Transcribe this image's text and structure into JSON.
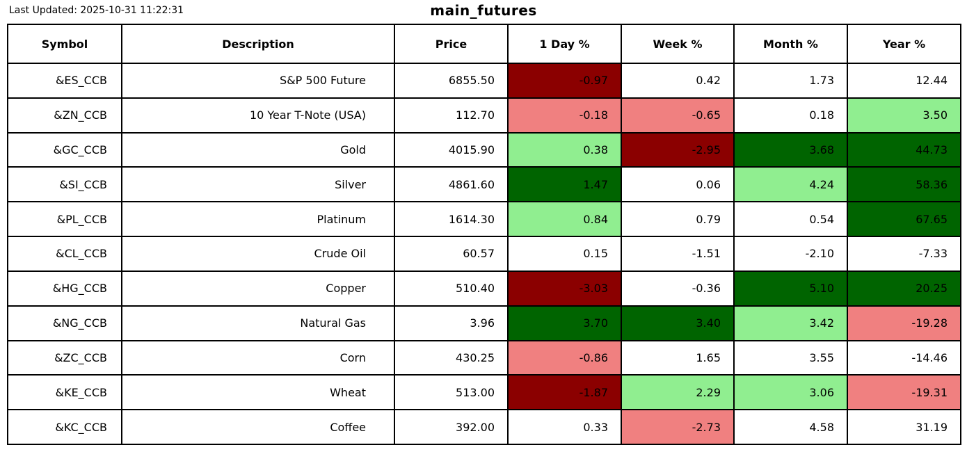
{
  "page": {
    "last_updated": "Last Updated: 2025-10-31 11:22:31",
    "title": "main_futures"
  },
  "colors": {
    "strong_up": "#006400",
    "up": "#90EE90",
    "down": "#F08080",
    "strong_down": "#8B0000",
    "neutral": "#FFFFFF",
    "border": "#000000",
    "text": "#000000"
  },
  "table": {
    "columns": [
      {
        "key": "symbol",
        "label": "Symbol"
      },
      {
        "key": "description",
        "label": "Description"
      },
      {
        "key": "price",
        "label": "Price"
      },
      {
        "key": "day",
        "label": "1 Day %"
      },
      {
        "key": "week",
        "label": "Week %"
      },
      {
        "key": "month",
        "label": "Month %"
      },
      {
        "key": "year",
        "label": "Year %"
      }
    ],
    "rows": [
      {
        "symbol": {
          "text": "&ES_CCB"
        },
        "description": {
          "text": "S&P 500 Future"
        },
        "price": {
          "text": "6855.50"
        },
        "day": {
          "text": "-0.97",
          "bg": "strong_down"
        },
        "week": {
          "text": "0.42",
          "bg": "neutral"
        },
        "month": {
          "text": "1.73",
          "bg": "neutral"
        },
        "year": {
          "text": "12.44",
          "bg": "neutral"
        }
      },
      {
        "symbol": {
          "text": "&ZN_CCB"
        },
        "description": {
          "text": "10 Year T-Note (USA)"
        },
        "price": {
          "text": "112.70"
        },
        "day": {
          "text": "-0.18",
          "bg": "down"
        },
        "week": {
          "text": "-0.65",
          "bg": "down"
        },
        "month": {
          "text": "0.18",
          "bg": "neutral"
        },
        "year": {
          "text": "3.50",
          "bg": "up"
        }
      },
      {
        "symbol": {
          "text": "&GC_CCB"
        },
        "description": {
          "text": "Gold"
        },
        "price": {
          "text": "4015.90"
        },
        "day": {
          "text": "0.38",
          "bg": "up"
        },
        "week": {
          "text": "-2.95",
          "bg": "strong_down"
        },
        "month": {
          "text": "3.68",
          "bg": "strong_up"
        },
        "year": {
          "text": "44.73",
          "bg": "strong_up"
        }
      },
      {
        "symbol": {
          "text": "&SI_CCB"
        },
        "description": {
          "text": "Silver"
        },
        "price": {
          "text": "4861.60"
        },
        "day": {
          "text": "1.47",
          "bg": "strong_up"
        },
        "week": {
          "text": "0.06",
          "bg": "neutral"
        },
        "month": {
          "text": "4.24",
          "bg": "up"
        },
        "year": {
          "text": "58.36",
          "bg": "strong_up"
        }
      },
      {
        "symbol": {
          "text": "&PL_CCB"
        },
        "description": {
          "text": "Platinum"
        },
        "price": {
          "text": "1614.30"
        },
        "day": {
          "text": "0.84",
          "bg": "up"
        },
        "week": {
          "text": "0.79",
          "bg": "neutral"
        },
        "month": {
          "text": "0.54",
          "bg": "neutral"
        },
        "year": {
          "text": "67.65",
          "bg": "strong_up"
        }
      },
      {
        "symbol": {
          "text": "&CL_CCB"
        },
        "description": {
          "text": "Crude Oil"
        },
        "price": {
          "text": "60.57"
        },
        "day": {
          "text": "0.15",
          "bg": "neutral"
        },
        "week": {
          "text": "-1.51",
          "bg": "neutral"
        },
        "month": {
          "text": "-2.10",
          "bg": "neutral"
        },
        "year": {
          "text": "-7.33",
          "bg": "neutral"
        }
      },
      {
        "symbol": {
          "text": "&HG_CCB"
        },
        "description": {
          "text": "Copper"
        },
        "price": {
          "text": "510.40"
        },
        "day": {
          "text": "-3.03",
          "bg": "strong_down"
        },
        "week": {
          "text": "-0.36",
          "bg": "neutral"
        },
        "month": {
          "text": "5.10",
          "bg": "strong_up"
        },
        "year": {
          "text": "20.25",
          "bg": "strong_up"
        }
      },
      {
        "symbol": {
          "text": "&NG_CCB"
        },
        "description": {
          "text": "Natural Gas"
        },
        "price": {
          "text": "3.96"
        },
        "day": {
          "text": "3.70",
          "bg": "strong_up"
        },
        "week": {
          "text": "3.40",
          "bg": "strong_up"
        },
        "month": {
          "text": "3.42",
          "bg": "up"
        },
        "year": {
          "text": "-19.28",
          "bg": "down"
        }
      },
      {
        "symbol": {
          "text": "&ZC_CCB"
        },
        "description": {
          "text": "Corn"
        },
        "price": {
          "text": "430.25"
        },
        "day": {
          "text": "-0.86",
          "bg": "down"
        },
        "week": {
          "text": "1.65",
          "bg": "neutral"
        },
        "month": {
          "text": "3.55",
          "bg": "neutral"
        },
        "year": {
          "text": "-14.46",
          "bg": "neutral"
        }
      },
      {
        "symbol": {
          "text": "&KE_CCB"
        },
        "description": {
          "text": "Wheat"
        },
        "price": {
          "text": "513.00"
        },
        "day": {
          "text": "-1.87",
          "bg": "strong_down"
        },
        "week": {
          "text": "2.29",
          "bg": "up"
        },
        "month": {
          "text": "3.06",
          "bg": "up"
        },
        "year": {
          "text": "-19.31",
          "bg": "down"
        }
      },
      {
        "symbol": {
          "text": "&KC_CCB"
        },
        "description": {
          "text": "Coffee"
        },
        "price": {
          "text": "392.00"
        },
        "day": {
          "text": "0.33",
          "bg": "neutral"
        },
        "week": {
          "text": "-2.73",
          "bg": "down"
        },
        "month": {
          "text": "4.58",
          "bg": "neutral"
        },
        "year": {
          "text": "31.19",
          "bg": "neutral"
        }
      }
    ]
  },
  "chart_data": {
    "type": "table",
    "title": "main_futures",
    "last_updated": "2025-10-31 11:22:31",
    "columns": [
      "Symbol",
      "Description",
      "Price",
      "1 Day %",
      "Week %",
      "Month %",
      "Year %"
    ],
    "rows": [
      [
        "&ES_CCB",
        "S&P 500 Future",
        6855.5,
        -0.97,
        0.42,
        1.73,
        12.44
      ],
      [
        "&ZN_CCB",
        "10 Year T-Note (USA)",
        112.7,
        -0.18,
        -0.65,
        0.18,
        3.5
      ],
      [
        "&GC_CCB",
        "Gold",
        4015.9,
        0.38,
        -2.95,
        3.68,
        44.73
      ],
      [
        "&SI_CCB",
        "Silver",
        4861.6,
        1.47,
        0.06,
        4.24,
        58.36
      ],
      [
        "&PL_CCB",
        "Platinum",
        1614.3,
        0.84,
        0.79,
        0.54,
        67.65
      ],
      [
        "&CL_CCB",
        "Crude Oil",
        60.57,
        0.15,
        -1.51,
        -2.1,
        -7.33
      ],
      [
        "&HG_CCB",
        "Copper",
        510.4,
        -3.03,
        -0.36,
        5.1,
        20.25
      ],
      [
        "&NG_CCB",
        "Natural Gas",
        3.96,
        3.7,
        3.4,
        3.42,
        -19.28
      ],
      [
        "&ZC_CCB",
        "Corn",
        430.25,
        -0.86,
        1.65,
        3.55,
        -14.46
      ],
      [
        "&KE_CCB",
        "Wheat",
        513.0,
        -1.87,
        2.29,
        3.06,
        -19.31
      ],
      [
        "&KC_CCB",
        "Coffee",
        392.0,
        0.33,
        -2.73,
        4.58,
        31.19
      ]
    ],
    "legend": "cell background encodes move strength: strong_down=#8B0000, down=#F08080, neutral=white, up=#90EE90, strong_up=#006400",
    "grid": true
  }
}
